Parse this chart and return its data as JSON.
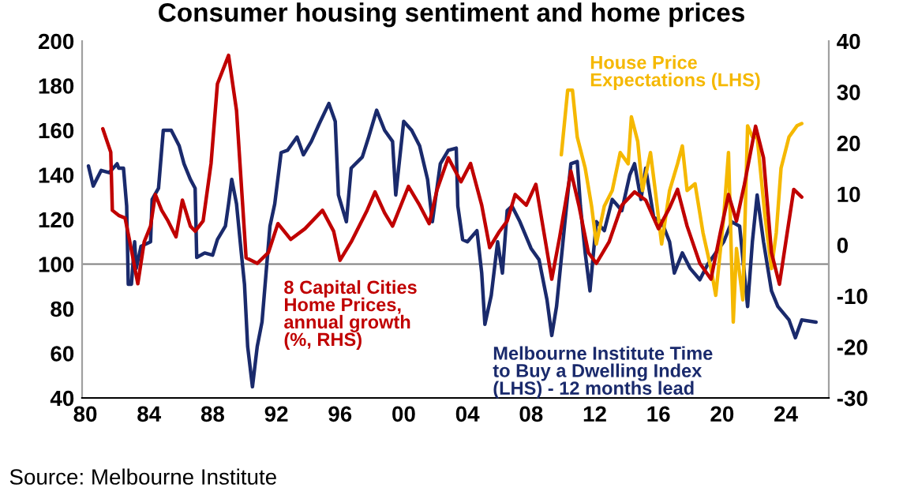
{
  "chart_data": {
    "type": "line",
    "title": "Consumer housing sentiment and home prices",
    "xlim": [
      1979.8,
      2026.7
    ],
    "xticks": [
      {
        "value": 1980,
        "label": "80"
      },
      {
        "value": 1984,
        "label": "84"
      },
      {
        "value": 1988,
        "label": "88"
      },
      {
        "value": 1992,
        "label": "92"
      },
      {
        "value": 1996,
        "label": "96"
      },
      {
        "value": 2000,
        "label": "00"
      },
      {
        "value": 2004,
        "label": "04"
      },
      {
        "value": 2008,
        "label": "08"
      },
      {
        "value": 2012,
        "label": "12"
      },
      {
        "value": 2016,
        "label": "16"
      },
      {
        "value": 2020,
        "label": "20"
      },
      {
        "value": 2024,
        "label": "24"
      }
    ],
    "ylim": [
      40,
      200
    ],
    "yticks": [
      40,
      60,
      80,
      100,
      120,
      140,
      160,
      180,
      200
    ],
    "y2lim": [
      -30,
      40
    ],
    "y2ticks": [
      -30,
      -20,
      -10,
      0,
      10,
      20,
      30,
      40
    ],
    "grid": false,
    "legend": false,
    "ref_lines": [
      {
        "axis": "y",
        "value": 100,
        "color": "#808080"
      }
    ],
    "series": [
      {
        "name": "Melbourne Institute Time\nto Buy a Dwelling Index\n(LHS) - 12 months lead",
        "color": "#1a2a6c",
        "axis": "y",
        "x": [
          1980.2,
          1980.5,
          1981.0,
          1981.5,
          1982.0,
          1982.1,
          1982.4,
          1982.6,
          1982.7,
          1982.9,
          1983.1,
          1983.2,
          1983.5,
          1984.1,
          1984.2,
          1984.6,
          1984.9,
          1985.4,
          1985.9,
          1986.2,
          1986.6,
          1986.9,
          1987.0,
          1987.5,
          1988.0,
          1988.3,
          1988.8,
          1989.0,
          1989.2,
          1989.5,
          1989.8,
          1990.0,
          1990.2,
          1990.5,
          1990.8,
          1991.1,
          1991.6,
          1991.9,
          1992.3,
          1992.7,
          1993.3,
          1993.7,
          1994.2,
          1994.7,
          1995.3,
          1995.7,
          1995.9,
          1996.4,
          1996.7,
          1997.4,
          1997.8,
          1998.3,
          1998.8,
          1999.3,
          1999.5,
          2000.0,
          2000.5,
          2001.0,
          2001.5,
          2001.8,
          2002.3,
          2002.8,
          2003.3,
          2003.4,
          2003.7,
          2004.0,
          2004.6,
          2004.9,
          2005.1,
          2005.5,
          2005.9,
          2006.2,
          2006.5,
          2006.8,
          2007.3,
          2008.0,
          2008.5,
          2009.0,
          2009.3,
          2009.6,
          2010.1,
          2010.5,
          2010.9,
          2011.1,
          2011.4,
          2011.7,
          2012.1,
          2012.6,
          2013.1,
          2013.7,
          2014.2,
          2014.5,
          2014.9,
          2015.2,
          2015.7,
          2016.2,
          2016.7,
          2017.0,
          2017.5,
          2018.0,
          2018.6,
          2019.1,
          2019.6,
          2020.1,
          2020.6,
          2021.1,
          2021.6,
          2021.9,
          2022.2,
          2022.6,
          2023.1,
          2023.5,
          2024.2,
          2024.6,
          2025.0,
          2025.9
        ],
        "values": [
          144,
          135,
          142,
          141,
          145,
          143,
          143,
          126,
          91,
          91,
          110,
          98,
          108,
          110,
          129,
          134,
          160,
          160,
          153,
          145,
          138,
          134,
          103,
          105,
          104,
          111,
          117,
          127,
          138,
          127,
          105,
          91,
          63,
          45,
          63,
          74,
          117,
          127,
          150,
          151,
          157,
          149,
          155,
          163,
          172,
          164,
          131,
          119,
          143,
          148,
          157,
          169,
          160,
          155,
          131,
          164,
          160,
          153,
          138,
          119,
          145,
          151,
          152,
          126,
          111,
          110,
          115,
          96,
          73,
          86,
          110,
          96,
          124,
          126,
          119,
          107,
          102,
          84,
          68,
          81,
          117,
          145,
          146,
          126,
          105,
          88,
          119,
          115,
          129,
          124,
          140,
          145,
          129,
          143,
          121,
          119,
          110,
          96,
          105,
          98,
          93,
          100,
          105,
          110,
          119,
          117,
          81,
          110,
          131,
          110,
          88,
          81,
          75,
          67,
          75,
          74
        ]
      },
      {
        "name": "8 Capital Cities\nHome Prices,\nannual growth\n(%, RHS)",
        "color": "#c00000",
        "axis": "y2",
        "x": [
          1981.1,
          1981.6,
          1981.7,
          1982.1,
          1982.5,
          1982.8,
          1983.3,
          1983.7,
          1984.1,
          1984.4,
          1984.8,
          1985.2,
          1985.7,
          1986.1,
          1986.6,
          1986.9,
          1987.4,
          1987.9,
          1988.3,
          1989.0,
          1989.5,
          1990.1,
          1990.8,
          1991.5,
          1992.1,
          1992.9,
          1993.8,
          1994.9,
          1995.6,
          1996.0,
          1996.7,
          1997.7,
          1998.2,
          1998.8,
          1999.3,
          2000.3,
          2001.0,
          2001.6,
          2002.1,
          2002.8,
          2003.6,
          2004.2,
          2004.9,
          2005.4,
          2006.0,
          2006.5,
          2007.0,
          2007.7,
          2008.3,
          2008.8,
          2009.3,
          2009.8,
          2010.5,
          2011.0,
          2011.6,
          2012.1,
          2012.9,
          2013.7,
          2014.5,
          2015.2,
          2016.0,
          2016.7,
          2017.2,
          2017.8,
          2018.6,
          2019.3,
          2019.9,
          2020.4,
          2020.9,
          2021.4,
          2022.1,
          2022.6,
          2023.1,
          2023.6,
          2024.0,
          2024.5,
          2025.0
        ],
        "values": [
          22.8,
          18.2,
          6.8,
          5.8,
          5.3,
          0.6,
          -7.6,
          0.6,
          3.7,
          9.9,
          6.8,
          4.7,
          1.6,
          8.8,
          3.7,
          2.7,
          4.7,
          16,
          31.6,
          37.2,
          26.4,
          -2.5,
          -3.6,
          -1.5,
          4.2,
          1.1,
          3.2,
          6.8,
          2.7,
          -3,
          0.6,
          6.8,
          10.4,
          6.3,
          3.7,
          11.5,
          7.8,
          4.2,
          10.9,
          17.1,
          12.4,
          16,
          7.8,
          -0.5,
          2.6,
          4.7,
          9.9,
          7.8,
          11.9,
          2.6,
          -6.7,
          1.6,
          14.5,
          7.8,
          -1.5,
          -3.6,
          0.6,
          7.8,
          10.4,
          8.8,
          3.2,
          7.3,
          10.9,
          3.7,
          -3.6,
          -6.7,
          2.6,
          9.9,
          4.7,
          11.9,
          23.3,
          17.1,
          -1.5,
          -7.7,
          0.6,
          10.9,
          9.4
        ]
      },
      {
        "name": "House Price\nExpectations (LHS)",
        "color": "#f5b800",
        "axis": "y",
        "x": [
          2009.9,
          2010.3,
          2010.6,
          2010.9,
          2011.4,
          2011.8,
          2012.1,
          2012.6,
          2013.1,
          2013.6,
          2014.1,
          2014.3,
          2014.7,
          2015.0,
          2015.5,
          2015.8,
          2016.2,
          2016.7,
          2017.2,
          2017.5,
          2017.8,
          2018.3,
          2018.8,
          2019.3,
          2019.6,
          2020.1,
          2020.4,
          2020.7,
          2020.9,
          2021.3,
          2021.6,
          2021.9,
          2022.2,
          2022.7,
          2023.1,
          2023.4,
          2023.7,
          2024.2,
          2024.7,
          2025.0
        ],
        "values": [
          149,
          178,
          178,
          157,
          143,
          126,
          109,
          126,
          133,
          150,
          145,
          166,
          155,
          133,
          150,
          133,
          109,
          133,
          145,
          153,
          133,
          136,
          114,
          98,
          86,
          121,
          150,
          74,
          107,
          84,
          162,
          157,
          157,
          121,
          98,
          114,
          143,
          157,
          162,
          163
        ]
      }
    ],
    "annotations": [
      "Source: Melbourne Institute"
    ]
  }
}
